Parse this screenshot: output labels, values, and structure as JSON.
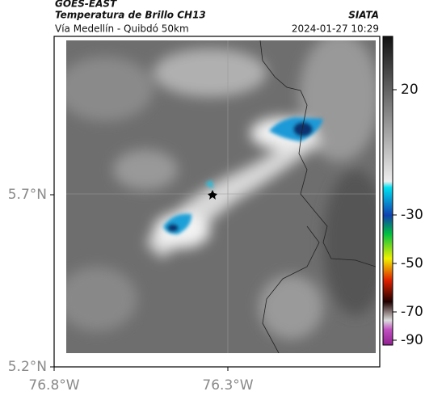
{
  "header": {
    "satellite": "GOES-EAST",
    "product": "Temperatura de Brillo CH13",
    "region": "Vía Medellín - Quibdó 50km",
    "source": "SIATA",
    "timestamp": "2024-01-27 10:29"
  },
  "map": {
    "lat_ticks": [
      {
        "value": 5.7,
        "label": "5.7°N"
      },
      {
        "value": 5.2,
        "label": "5.2°N"
      }
    ],
    "lon_ticks": [
      {
        "value": -76.8,
        "label": "76.8°W"
      },
      {
        "value": -76.3,
        "label": "76.3°W"
      }
    ]
  },
  "colorbar": {
    "ticks": [
      20,
      -30,
      -50,
      -70,
      -90
    ]
  }
}
